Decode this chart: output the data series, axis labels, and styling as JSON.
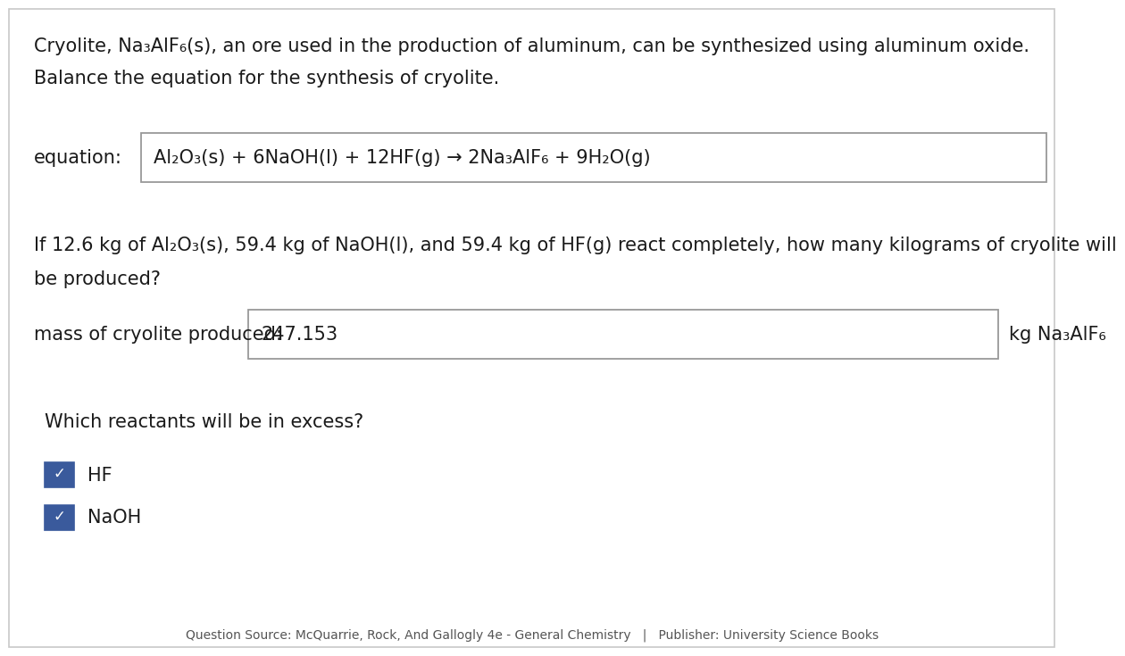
{
  "bg_color": "#ffffff",
  "panel_color": "#ffffff",
  "border_color": "#b0b0b0",
  "text_color": "#1a1a1a",
  "title_line1": "Cryolite, Na₃AlF₆(s), an ore used in the production of aluminum, can be synthesized using aluminum oxide.",
  "title_line2": "Balance the equation for the synthesis of cryolite.",
  "equation_label": "equation:",
  "equation_text": "Al₂O₃(s) + 6NaOH(l) + 12HF(g) → 2Na₃AlF₆ + 9H₂O(g)",
  "question_text_line1": "If 12.6 kg of Al₂O₃(s), 59.4 kg of NaOH(l), and 59.4 kg of HF(g) react completely, how many kilograms of cryolite will",
  "question_text_line2": "be produced?",
  "mass_label": "mass of cryolite produced:",
  "mass_value": "247.153",
  "mass_unit": "kg Na₃AlF₆",
  "excess_label": "Which reactants will be in excess?",
  "checkbox1_label": "HF",
  "checkbox2_label": "NaOH",
  "checkbox_color": "#3a5a9c",
  "footer_text": "Question Source: McQuarrie, Rock, And Gallogly 4e - General Chemistry   |   Publisher: University Science Books",
  "font_size_main": 15,
  "font_size_footer": 10,
  "eq_box_border": "#999999",
  "outer_border": "#c8c8c8"
}
